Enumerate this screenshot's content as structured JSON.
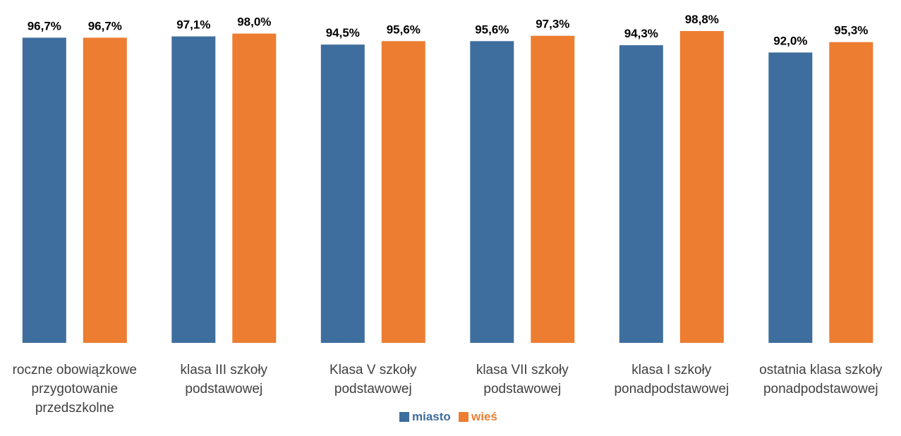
{
  "chart_data": {
    "type": "bar",
    "title": "",
    "xlabel": "",
    "ylabel": "",
    "ylim": [
      0,
      100
    ],
    "grid": false,
    "legend": "bottom",
    "categories": [
      [
        "roczne obowiązkowe",
        "przygotowanie",
        "przedszkolne"
      ],
      [
        "klasa III szkoły",
        "podstawowej"
      ],
      [
        "Klasa V szkoły",
        "podstawowej"
      ],
      [
        "klasa VII szkoły",
        "podstawowej"
      ],
      [
        "klasa I szkoły",
        "ponadpodstawowej"
      ],
      [
        "ostatnia klasa szkoły",
        "ponadpodstawowej"
      ]
    ],
    "series": [
      {
        "name": "miasto",
        "color": "#3E6E9D",
        "values": [
          96.7,
          97.1,
          94.5,
          95.6,
          94.3,
          92.0
        ],
        "labels": [
          "96,7%",
          "97,1%",
          "94,5%",
          "95,6%",
          "94,3%",
          "92,0%"
        ]
      },
      {
        "name": "wieś",
        "color": "#ED7D31",
        "values": [
          96.7,
          98.0,
          95.6,
          97.3,
          98.8,
          95.3
        ],
        "labels": [
          "96,7%",
          "98,0%",
          "95,6%",
          "97,3%",
          "98,8%",
          "95,3%"
        ]
      }
    ]
  }
}
